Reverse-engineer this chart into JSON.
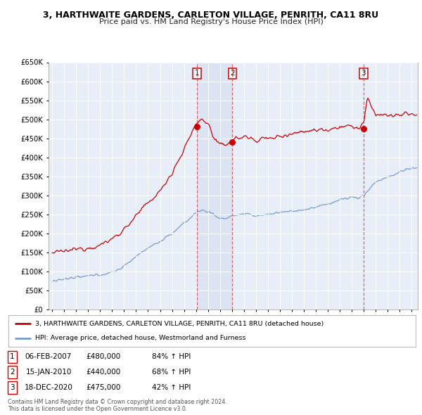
{
  "title": "3, HARTHWAITE GARDENS, CARLETON VILLAGE, PENRITH, CA11 8RU",
  "subtitle": "Price paid vs. HM Land Registry's House Price Index (HPI)",
  "background_color": "#ffffff",
  "plot_background_color": "#e8eef8",
  "grid_color": "#ffffff",
  "red_line_color": "#cc0000",
  "blue_line_color": "#7799cc",
  "sale_dot_color": "#cc0000",
  "ylim": [
    0,
    650000
  ],
  "yticks": [
    0,
    50000,
    100000,
    150000,
    200000,
    250000,
    300000,
    350000,
    400000,
    450000,
    500000,
    550000,
    600000,
    650000
  ],
  "ytick_labels": [
    "£0",
    "£50K",
    "£100K",
    "£150K",
    "£200K",
    "£250K",
    "£300K",
    "£350K",
    "£400K",
    "£450K",
    "£500K",
    "£550K",
    "£600K",
    "£650K"
  ],
  "xlim_start": 1994.7,
  "xlim_end": 2025.5,
  "xtick_years": [
    1995,
    1996,
    1997,
    1998,
    1999,
    2000,
    2001,
    2002,
    2003,
    2004,
    2005,
    2006,
    2007,
    2008,
    2009,
    2010,
    2011,
    2012,
    2013,
    2014,
    2015,
    2016,
    2017,
    2018,
    2019,
    2020,
    2021,
    2022,
    2023,
    2024,
    2025
  ],
  "sale1_x": 2007.09,
  "sale1_y": 480000,
  "sale2_x": 2010.04,
  "sale2_y": 440000,
  "sale3_x": 2020.96,
  "sale3_y": 475000,
  "sale1_date": "06-FEB-2007",
  "sale1_price": "£480,000",
  "sale1_pct": "84% ↑ HPI",
  "sale2_date": "15-JAN-2010",
  "sale2_price": "£440,000",
  "sale2_pct": "68% ↑ HPI",
  "sale3_date": "18-DEC-2020",
  "sale3_price": "£475,000",
  "sale3_pct": "42% ↑ HPI",
  "legend_label1": "3, HARTHWAITE GARDENS, CARLETON VILLAGE, PENRITH, CA11 8RU (detached house)",
  "legend_label2": "HPI: Average price, detached house, Westmorland and Furness",
  "footer1": "Contains HM Land Registry data © Crown copyright and database right 2024.",
  "footer2": "This data is licensed under the Open Government Licence v3.0."
}
